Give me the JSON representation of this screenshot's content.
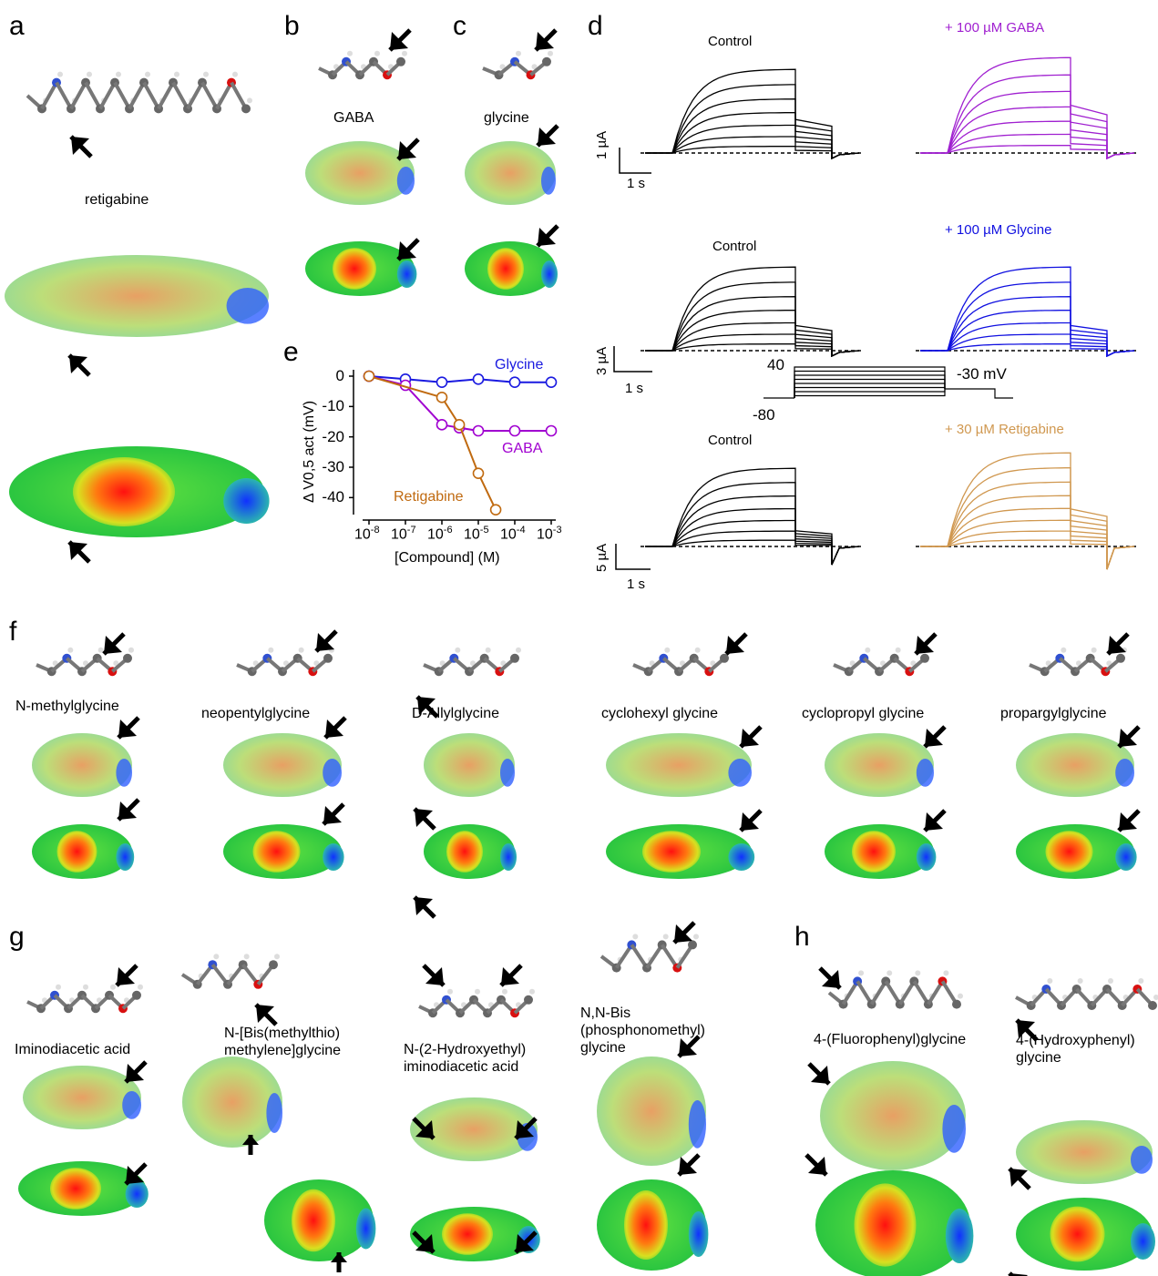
{
  "panels": {
    "a": "a",
    "b": "b",
    "c": "c",
    "d": "d",
    "e": "e",
    "f": "f",
    "g": "g",
    "h": "h"
  },
  "a": {
    "name": "retigabine"
  },
  "b": {
    "name": "GABA"
  },
  "c": {
    "name": "glycine"
  },
  "d": {
    "rows": [
      {
        "left_title": "Control",
        "right_title": "+ 100 µM GABA",
        "right_color": "#a020d0",
        "scale_y": "1 µA",
        "scale_x": "1 s"
      },
      {
        "left_title": "Control",
        "right_title": "+ 100 µM Glycine",
        "right_color": "#1010e0",
        "scale_y": "3 µA",
        "scale_x": "1 s"
      },
      {
        "left_title": "Control",
        "right_title": "+ 30 µM Retigabine",
        "right_color": "#d09850",
        "scale_y": "5 µA",
        "scale_x": "1 s"
      }
    ],
    "protocol": {
      "high": "40",
      "low": "-80",
      "tail": "-30 mV"
    }
  },
  "colors": {
    "glycine": "#1a1ae0",
    "gaba": "#a000d0",
    "retigabine": "#c06a10",
    "red": "#e01010",
    "green": "#30d040",
    "blue": "#2040ff",
    "yellow": "#d8d830"
  },
  "chart_data": {
    "type": "line",
    "xlabel": "[Compound] (M)",
    "ylabel": "Δ V0,5 act (mV)",
    "x_scale": "log",
    "xlim": [
      1e-08,
      0.001
    ],
    "ylim": [
      -45,
      0
    ],
    "x_ticks": [
      "10-8",
      "10-7",
      "10-6",
      "10-5",
      "10-4",
      "10-3"
    ],
    "y_ticks": [
      "0",
      "-10",
      "-20",
      "-30",
      "-40"
    ],
    "series": [
      {
        "name": "Glycine",
        "color": "#1a1ae0",
        "x": [
          1e-08,
          1e-07,
          1e-06,
          1e-05,
          0.0001,
          0.001
        ],
        "y": [
          0,
          -1,
          -2,
          -1,
          -2,
          -2
        ]
      },
      {
        "name": "GABA",
        "color": "#a000d0",
        "x": [
          1e-08,
          1e-07,
          1e-06,
          3e-06,
          1e-05,
          0.0001,
          0.001
        ],
        "y": [
          0,
          -3,
          -16,
          -17,
          -18,
          -18,
          -18
        ]
      },
      {
        "name": "Retigabine",
        "color": "#c06a10",
        "x": [
          1e-08,
          1e-06,
          3e-06,
          1e-05,
          3e-05
        ],
        "y": [
          0,
          -7,
          -16,
          -32,
          -44
        ]
      }
    ]
  },
  "f": {
    "names": [
      "N-methylglycine",
      "neopentylglycine",
      "D-Allylglycine",
      "cyclohexyl glycine",
      "cyclopropyl glycine",
      "propargylglycine"
    ]
  },
  "g": {
    "names": [
      "Iminodiacetic acid",
      "N-[Bis(methylthio)\nmethylene]glycine",
      "N-(2-Hydroxyethyl)\niminodiacetic acid",
      "N,N-Bis\n(phosphonomethyl)\nglycine"
    ]
  },
  "h": {
    "names": [
      "4-(Fluorophenyl)glycine",
      "4-(Hydroxyphenyl)\nglycine"
    ]
  }
}
